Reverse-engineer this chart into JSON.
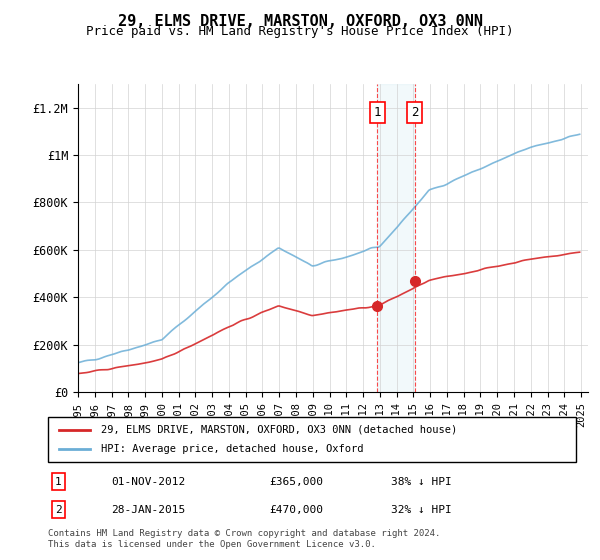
{
  "title": "29, ELMS DRIVE, MARSTON, OXFORD, OX3 0NN",
  "subtitle": "Price paid vs. HM Land Registry's House Price Index (HPI)",
  "ylabel": "",
  "ylim": [
    0,
    1300000
  ],
  "yticks": [
    0,
    200000,
    400000,
    600000,
    800000,
    1000000,
    1200000
  ],
  "ytick_labels": [
    "£0",
    "£200K",
    "£400K",
    "£600K",
    "£800K",
    "£1M",
    "£1.2M"
  ],
  "hpi_color": "#6baed6",
  "price_color": "#d62728",
  "marker1_date_idx": 215,
  "marker2_date_idx": 241,
  "sale1_label": "01-NOV-2012",
  "sale1_price": "£365,000",
  "sale1_note": "38% ↓ HPI",
  "sale2_label": "28-JAN-2015",
  "sale2_price": "£470,000",
  "sale2_note": "32% ↓ HPI",
  "legend_line1": "29, ELMS DRIVE, MARSTON, OXFORD, OX3 0NN (detached house)",
  "legend_line2": "HPI: Average price, detached house, Oxford",
  "footnote": "Contains HM Land Registry data © Crown copyright and database right 2024.\nThis data is licensed under the Open Government Licence v3.0.",
  "start_year": 1995,
  "end_year": 2025
}
